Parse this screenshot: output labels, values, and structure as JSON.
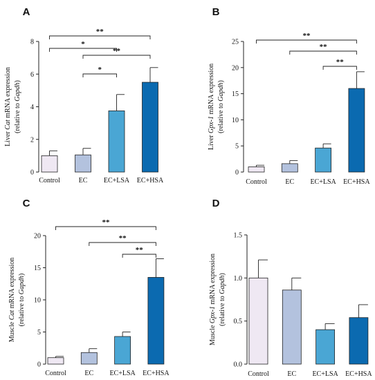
{
  "colors": {
    "control": "#efe8f3",
    "ec": "#b3c2de",
    "ec_lsa": "#4aa6d4",
    "ec_hsa": "#0b6ab0",
    "ink": "#222222"
  },
  "chart_data": [
    {
      "panel": "A",
      "type": "bar",
      "categories": [
        "Control",
        "EC",
        "EC+LSA",
        "EC+HSA"
      ],
      "values": [
        1.0,
        1.05,
        3.75,
        5.5
      ],
      "errors": [
        0.3,
        0.4,
        1.0,
        0.9
      ],
      "ylim": [
        0,
        8
      ],
      "yticks": [
        "0",
        "2",
        "4",
        "6",
        "8"
      ],
      "ylabel_parts": [
        {
          "text": "Liver ",
          "italic": false
        },
        {
          "text": "Cat",
          "italic": true
        },
        {
          "text": " mRNA expression",
          "italic": false
        }
      ],
      "ylabel2_parts": [
        {
          "text": "(relative to ",
          "italic": false
        },
        {
          "text": "Gapdh",
          "italic": true
        },
        {
          "text": ")",
          "italic": false
        }
      ],
      "significance": [
        {
          "from": 0,
          "to": 3,
          "label": "**"
        },
        {
          "from": 0,
          "to": 2,
          "label": "*"
        },
        {
          "from": 1,
          "to": 3,
          "label": "**"
        },
        {
          "from": 1,
          "to": 2,
          "label": "*"
        }
      ]
    },
    {
      "panel": "B",
      "type": "bar",
      "categories": [
        "Control",
        "EC",
        "EC+LSA",
        "EC+HSA"
      ],
      "values": [
        1.0,
        1.6,
        4.6,
        16.0
      ],
      "errors": [
        0.3,
        0.6,
        0.8,
        3.2
      ],
      "ylim": [
        0,
        25
      ],
      "yticks": [
        "0",
        "5",
        "10",
        "15",
        "20",
        "25"
      ],
      "ylabel_parts": [
        {
          "text": "Liver ",
          "italic": false
        },
        {
          "text": "Gpx-1",
          "italic": true
        },
        {
          "text": " mRNA expression",
          "italic": false
        }
      ],
      "ylabel2_parts": [
        {
          "text": "(relative to ",
          "italic": false
        },
        {
          "text": "Gapdh",
          "italic": true
        },
        {
          "text": ")",
          "italic": false
        }
      ],
      "significance": [
        {
          "from": 0,
          "to": 3,
          "label": "**"
        },
        {
          "from": 1,
          "to": 3,
          "label": "**"
        },
        {
          "from": 2,
          "to": 3,
          "label": "**"
        }
      ]
    },
    {
      "panel": "C",
      "type": "bar",
      "categories": [
        "Control",
        "EC",
        "EC+LSA",
        "EC+HSA"
      ],
      "values": [
        1.0,
        1.8,
        4.3,
        13.5
      ],
      "errors": [
        0.2,
        0.6,
        0.7,
        2.9
      ],
      "ylim": [
        0,
        20
      ],
      "yticks": [
        "0",
        "5",
        "10",
        "15",
        "20"
      ],
      "ylabel_parts": [
        {
          "text": "Muscle ",
          "italic": false
        },
        {
          "text": "Cat",
          "italic": true
        },
        {
          "text": " mRNA expression",
          "italic": false
        }
      ],
      "ylabel2_parts": [
        {
          "text": "(relative to ",
          "italic": false
        },
        {
          "text": "Gapdh",
          "italic": true
        },
        {
          "text": ")",
          "italic": false
        }
      ],
      "significance": [
        {
          "from": 0,
          "to": 3,
          "label": "**"
        },
        {
          "from": 1,
          "to": 3,
          "label": "**"
        },
        {
          "from": 2,
          "to": 3,
          "label": "**"
        }
      ]
    },
    {
      "panel": "D",
      "type": "bar",
      "categories": [
        "Control",
        "EC",
        "EC+LSA",
        "EC+HSA"
      ],
      "values": [
        1.0,
        0.86,
        0.4,
        0.54
      ],
      "errors": [
        0.21,
        0.14,
        0.07,
        0.15
      ],
      "ylim": [
        0,
        1.5
      ],
      "yticks": [
        "0.0",
        "0.5",
        "1.0",
        "1.5"
      ],
      "ylabel_parts": [
        {
          "text": "Muscle ",
          "italic": false
        },
        {
          "text": "Gpx-1",
          "italic": true
        },
        {
          "text": " mRNA expression",
          "italic": false
        }
      ],
      "ylabel2_parts": [
        {
          "text": "(relative to ",
          "italic": false
        },
        {
          "text": "Gapdh",
          "italic": true
        },
        {
          "text": ")",
          "italic": false
        }
      ],
      "significance": []
    }
  ]
}
